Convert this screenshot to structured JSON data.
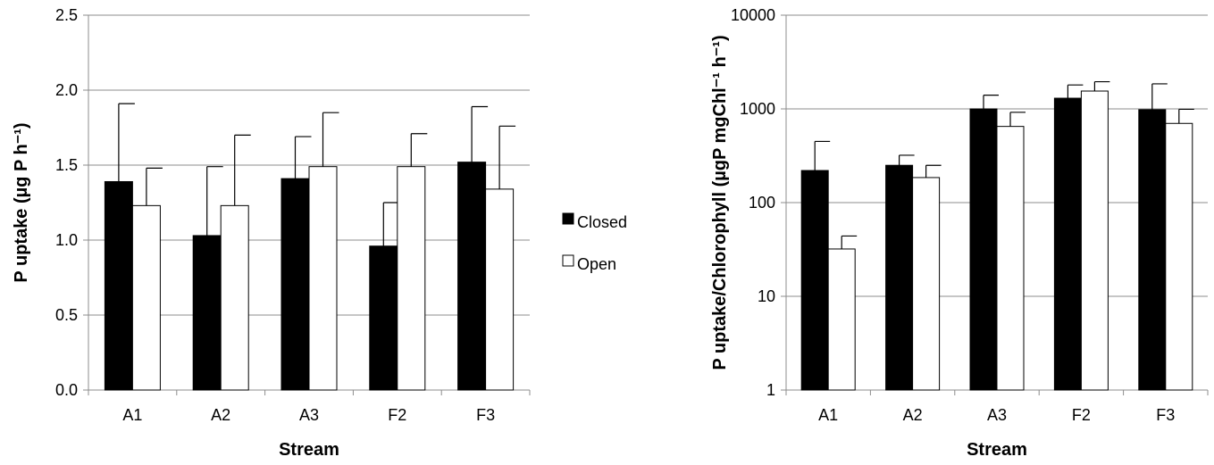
{
  "chart_data": [
    {
      "type": "bar",
      "categories": [
        "A1",
        "A2",
        "A3",
        "F2",
        "F3"
      ],
      "series": [
        {
          "name": "Closed",
          "color": "#000000",
          "values": [
            1.39,
            1.03,
            1.41,
            0.96,
            1.52
          ],
          "error": [
            0.52,
            0.46,
            0.28,
            0.29,
            0.37
          ]
        },
        {
          "name": "Open",
          "color": "#ffffff",
          "values": [
            1.23,
            1.23,
            1.49,
            1.49,
            1.34
          ],
          "error": [
            0.25,
            0.47,
            0.36,
            0.22,
            0.42
          ]
        }
      ],
      "xlabel": "Stream",
      "ylabel": "P uptake (µg P h⁻¹)",
      "ylim": [
        0,
        2.5
      ],
      "yticks": [
        "0.0",
        "0.5",
        "1.0",
        "1.5",
        "2.0",
        "2.5"
      ],
      "ytick_values": [
        0,
        0.5,
        1.0,
        1.5,
        2.0,
        2.5
      ],
      "grid": true,
      "scale": "linear"
    },
    {
      "type": "bar",
      "categories": [
        "A1",
        "A2",
        "A3",
        "F2",
        "F3"
      ],
      "series": [
        {
          "name": "Closed",
          "color": "#000000",
          "values": [
            220,
            250,
            1000,
            1300,
            980
          ],
          "error_upper": [
            450,
            320,
            1400,
            1800,
            1850
          ]
        },
        {
          "name": "Open",
          "color": "#ffffff",
          "values": [
            32,
            185,
            650,
            1550,
            700
          ],
          "error_upper": [
            44,
            250,
            920,
            1950,
            990
          ]
        }
      ],
      "xlabel": "Stream",
      "ylabel": "P uptake/Chlorophyll (µgP mgChl⁻¹ h⁻¹)",
      "ylim": [
        1,
        10000
      ],
      "yticks": [
        "1",
        "10",
        "100",
        "1000",
        "10000"
      ],
      "ytick_values": [
        1,
        10,
        100,
        1000,
        10000
      ],
      "grid": true,
      "scale": "log"
    }
  ],
  "legend": {
    "placement": "center",
    "items": [
      {
        "label": "Closed",
        "color": "#000000"
      },
      {
        "label": "Open",
        "color": "#ffffff"
      }
    ]
  }
}
